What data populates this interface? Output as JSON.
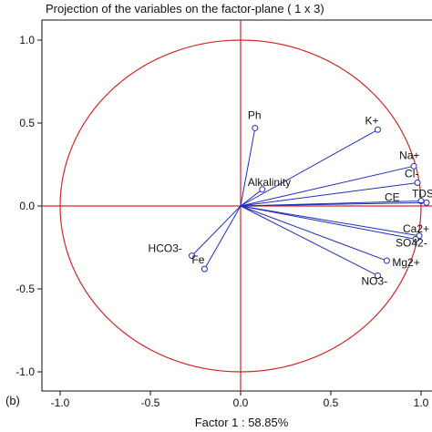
{
  "chart_data": {
    "type": "scatter",
    "subtype": "correlation-circle",
    "title": "Projection of the variables on the factor-plane (  1 x   3)",
    "xlabel": "Factor 1 : 58.85%",
    "ylabel": "",
    "panel_label": "(b)",
    "xlim": [
      -1.1,
      1.1
    ],
    "ylim": [
      -1.1,
      1.1
    ],
    "x_ticks": [
      "-1.0",
      "-0.5",
      "0.0",
      "0.5",
      "1.0"
    ],
    "y_ticks": [
      "1.0",
      "0.5",
      "0.0",
      "-0.5",
      "-1.0"
    ],
    "x_tick_values": [
      -1.0,
      -0.5,
      0.0,
      0.5,
      1.0
    ],
    "y_tick_values": [
      1.0,
      0.5,
      0.0,
      -0.5,
      -1.0
    ],
    "circle_radius": 1.0,
    "variables": [
      {
        "name": "Ph",
        "x": 0.08,
        "y": 0.47
      },
      {
        "name": "K+",
        "x": 0.76,
        "y": 0.46
      },
      {
        "name": "Na+",
        "x": 0.96,
        "y": 0.24
      },
      {
        "name": "Cl-",
        "x": 0.98,
        "y": 0.14
      },
      {
        "name": "Alkalinity",
        "x": 0.12,
        "y": 0.1
      },
      {
        "name": "CE",
        "x": 1.0,
        "y": 0.03
      },
      {
        "name": "TDS",
        "x": 1.03,
        "y": 0.02
      },
      {
        "name": "Ca2+",
        "x": 0.99,
        "y": -0.18
      },
      {
        "name": "SO42-",
        "x": 0.97,
        "y": -0.2
      },
      {
        "name": "Mg2+",
        "x": 0.81,
        "y": -0.33
      },
      {
        "name": "NO3-",
        "x": 0.76,
        "y": -0.42
      },
      {
        "name": "HCO3-",
        "x": -0.27,
        "y": -0.3
      },
      {
        "name": "Fe",
        "x": -0.2,
        "y": -0.38
      }
    ],
    "colors": {
      "circle": "#d62728",
      "axes": "#d62728",
      "vectors": "#1f2fbf",
      "frame": "#111111"
    }
  }
}
